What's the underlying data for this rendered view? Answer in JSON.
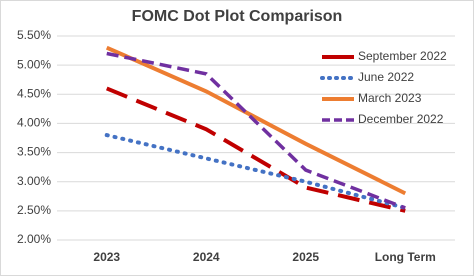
{
  "chart_data": {
    "type": "line",
    "title": "FOMC Dot Plot Comparison",
    "categories": [
      "2023",
      "2024",
      "2025",
      "Long Term"
    ],
    "series": [
      {
        "name": "September 2022",
        "color": "#c00000",
        "dash": "22,10",
        "width": 4,
        "values": [
          4.6,
          3.9,
          2.9,
          2.5
        ]
      },
      {
        "name": "June 2022",
        "color": "#4472c4",
        "dash": "1,7",
        "width": 4,
        "values": [
          3.8,
          3.4,
          3.0,
          2.55
        ]
      },
      {
        "name": "March 2023",
        "color": "#ed7d31",
        "dash": "",
        "width": 4,
        "values": [
          5.3,
          4.55,
          3.65,
          2.8
        ]
      },
      {
        "name": "December 2022",
        "color": "#7030a0",
        "dash": "12,6",
        "width": 3.5,
        "values": [
          5.2,
          4.85,
          3.2,
          2.55
        ]
      }
    ],
    "ylim": [
      2.0,
      5.5
    ],
    "yticks": [
      {
        "value": 2.0,
        "label": "2.00%"
      },
      {
        "value": 2.5,
        "label": "2.50%"
      },
      {
        "value": 3.0,
        "label": "3.00%"
      },
      {
        "value": 3.5,
        "label": "3.50%"
      },
      {
        "value": 4.0,
        "label": "4.00%"
      },
      {
        "value": 4.5,
        "label": "4.50%"
      },
      {
        "value": 5.0,
        "label": "5.00%"
      },
      {
        "value": 5.5,
        "label": "5.50%"
      }
    ],
    "grid": true,
    "legend": "top-right"
  }
}
